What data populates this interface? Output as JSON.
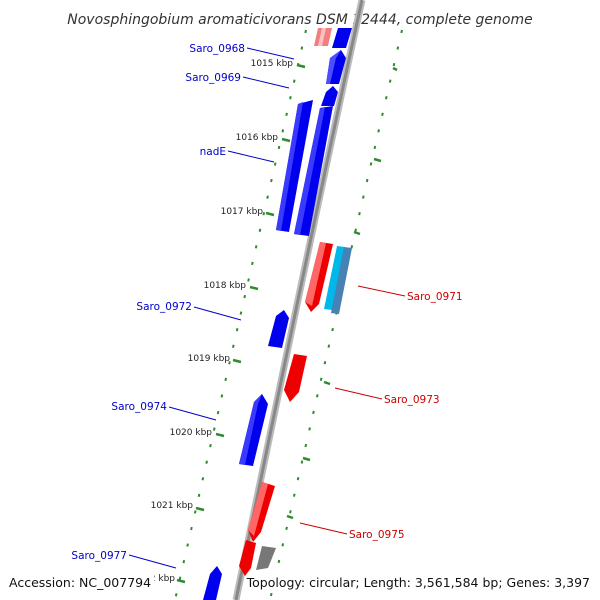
{
  "title": "Novosphingobium aromaticivorans DSM 12444, complete genome",
  "accession": "Accession: NC_007794",
  "summary": "Topology: circular; Length: 3,561,584 bp; Genes: 3,397",
  "kbp_labels": [
    "1015 kbp",
    "1016 kbp",
    "1017 kbp",
    "1018 kbp",
    "1019 kbp",
    "1020 kbp",
    "1021 kbp",
    "1022 kbp"
  ],
  "genes_left": [
    "Saro_0968",
    "Saro_0969",
    "nadE",
    "Saro_0972",
    "Saro_0974",
    "Saro_0977"
  ],
  "genes_right": [
    "Saro_0971",
    "Saro_0973",
    "Saro_0975"
  ],
  "colors": {
    "forward_strand": "#0000ff",
    "reverse_strand": "#ff0000",
    "label_left": "#0000cc",
    "label_right": "#cc0000",
    "tick": "#2e8b2e",
    "backbone": "#999999"
  }
}
